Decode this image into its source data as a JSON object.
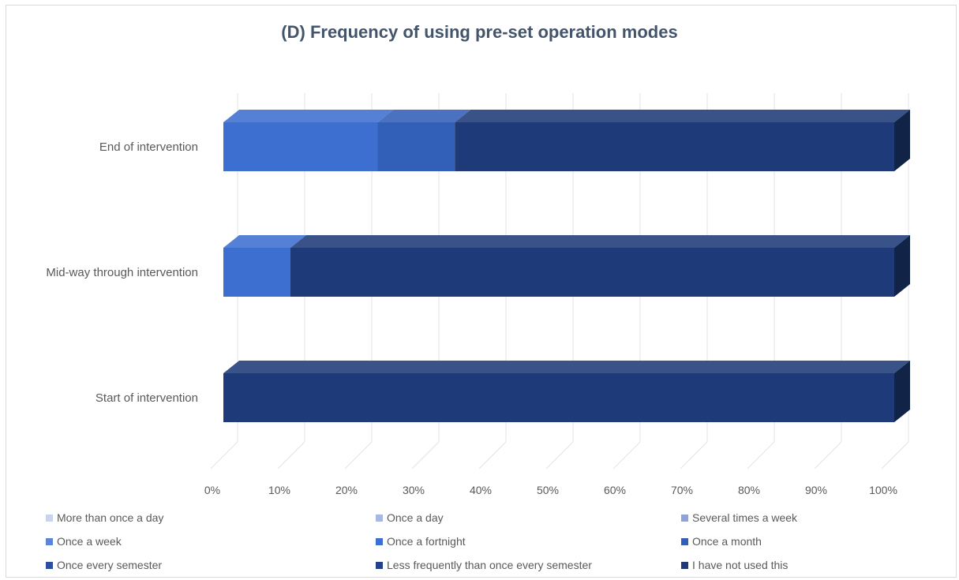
{
  "chart_data": {
    "type": "bar",
    "orientation": "horizontal",
    "stacked": "percent",
    "three_d": true,
    "title": "(D) Frequency of using pre-set operation modes",
    "categories": [
      "End of intervention",
      "Mid-way through intervention",
      "Start of intervention"
    ],
    "x_ticks": [
      "0%",
      "10%",
      "20%",
      "30%",
      "40%",
      "50%",
      "60%",
      "70%",
      "80%",
      "90%",
      "100%"
    ],
    "xlim": [
      0,
      100
    ],
    "grid": true,
    "legend_position": "bottom",
    "series": [
      {
        "name": "More than once a day",
        "color": "#c9d3ea",
        "values": [
          0,
          0,
          0
        ]
      },
      {
        "name": "Once a day",
        "color": "#a9b8e0",
        "values": [
          0,
          0,
          0
        ]
      },
      {
        "name": "Several times a week",
        "color": "#8fa3d8",
        "values": [
          0,
          0,
          0
        ]
      },
      {
        "name": "Once a week",
        "color": "#5b85d6",
        "values": [
          0,
          0,
          0
        ]
      },
      {
        "name": "Once a fortnight",
        "color": "#3d6fd0",
        "values": [
          23,
          10,
          0
        ]
      },
      {
        "name": "Once a month",
        "color": "#325fb8",
        "values": [
          11.5,
          0,
          0
        ]
      },
      {
        "name": "Once every semester",
        "color": "#2b4f9e",
        "values": [
          0,
          0,
          0
        ]
      },
      {
        "name": "Less frequently than once every semester",
        "color": "#24428a",
        "values": [
          0,
          0,
          0
        ]
      },
      {
        "name": "I have not used this",
        "color": "#1e3a78",
        "values": [
          65.5,
          90,
          100
        ]
      }
    ]
  }
}
